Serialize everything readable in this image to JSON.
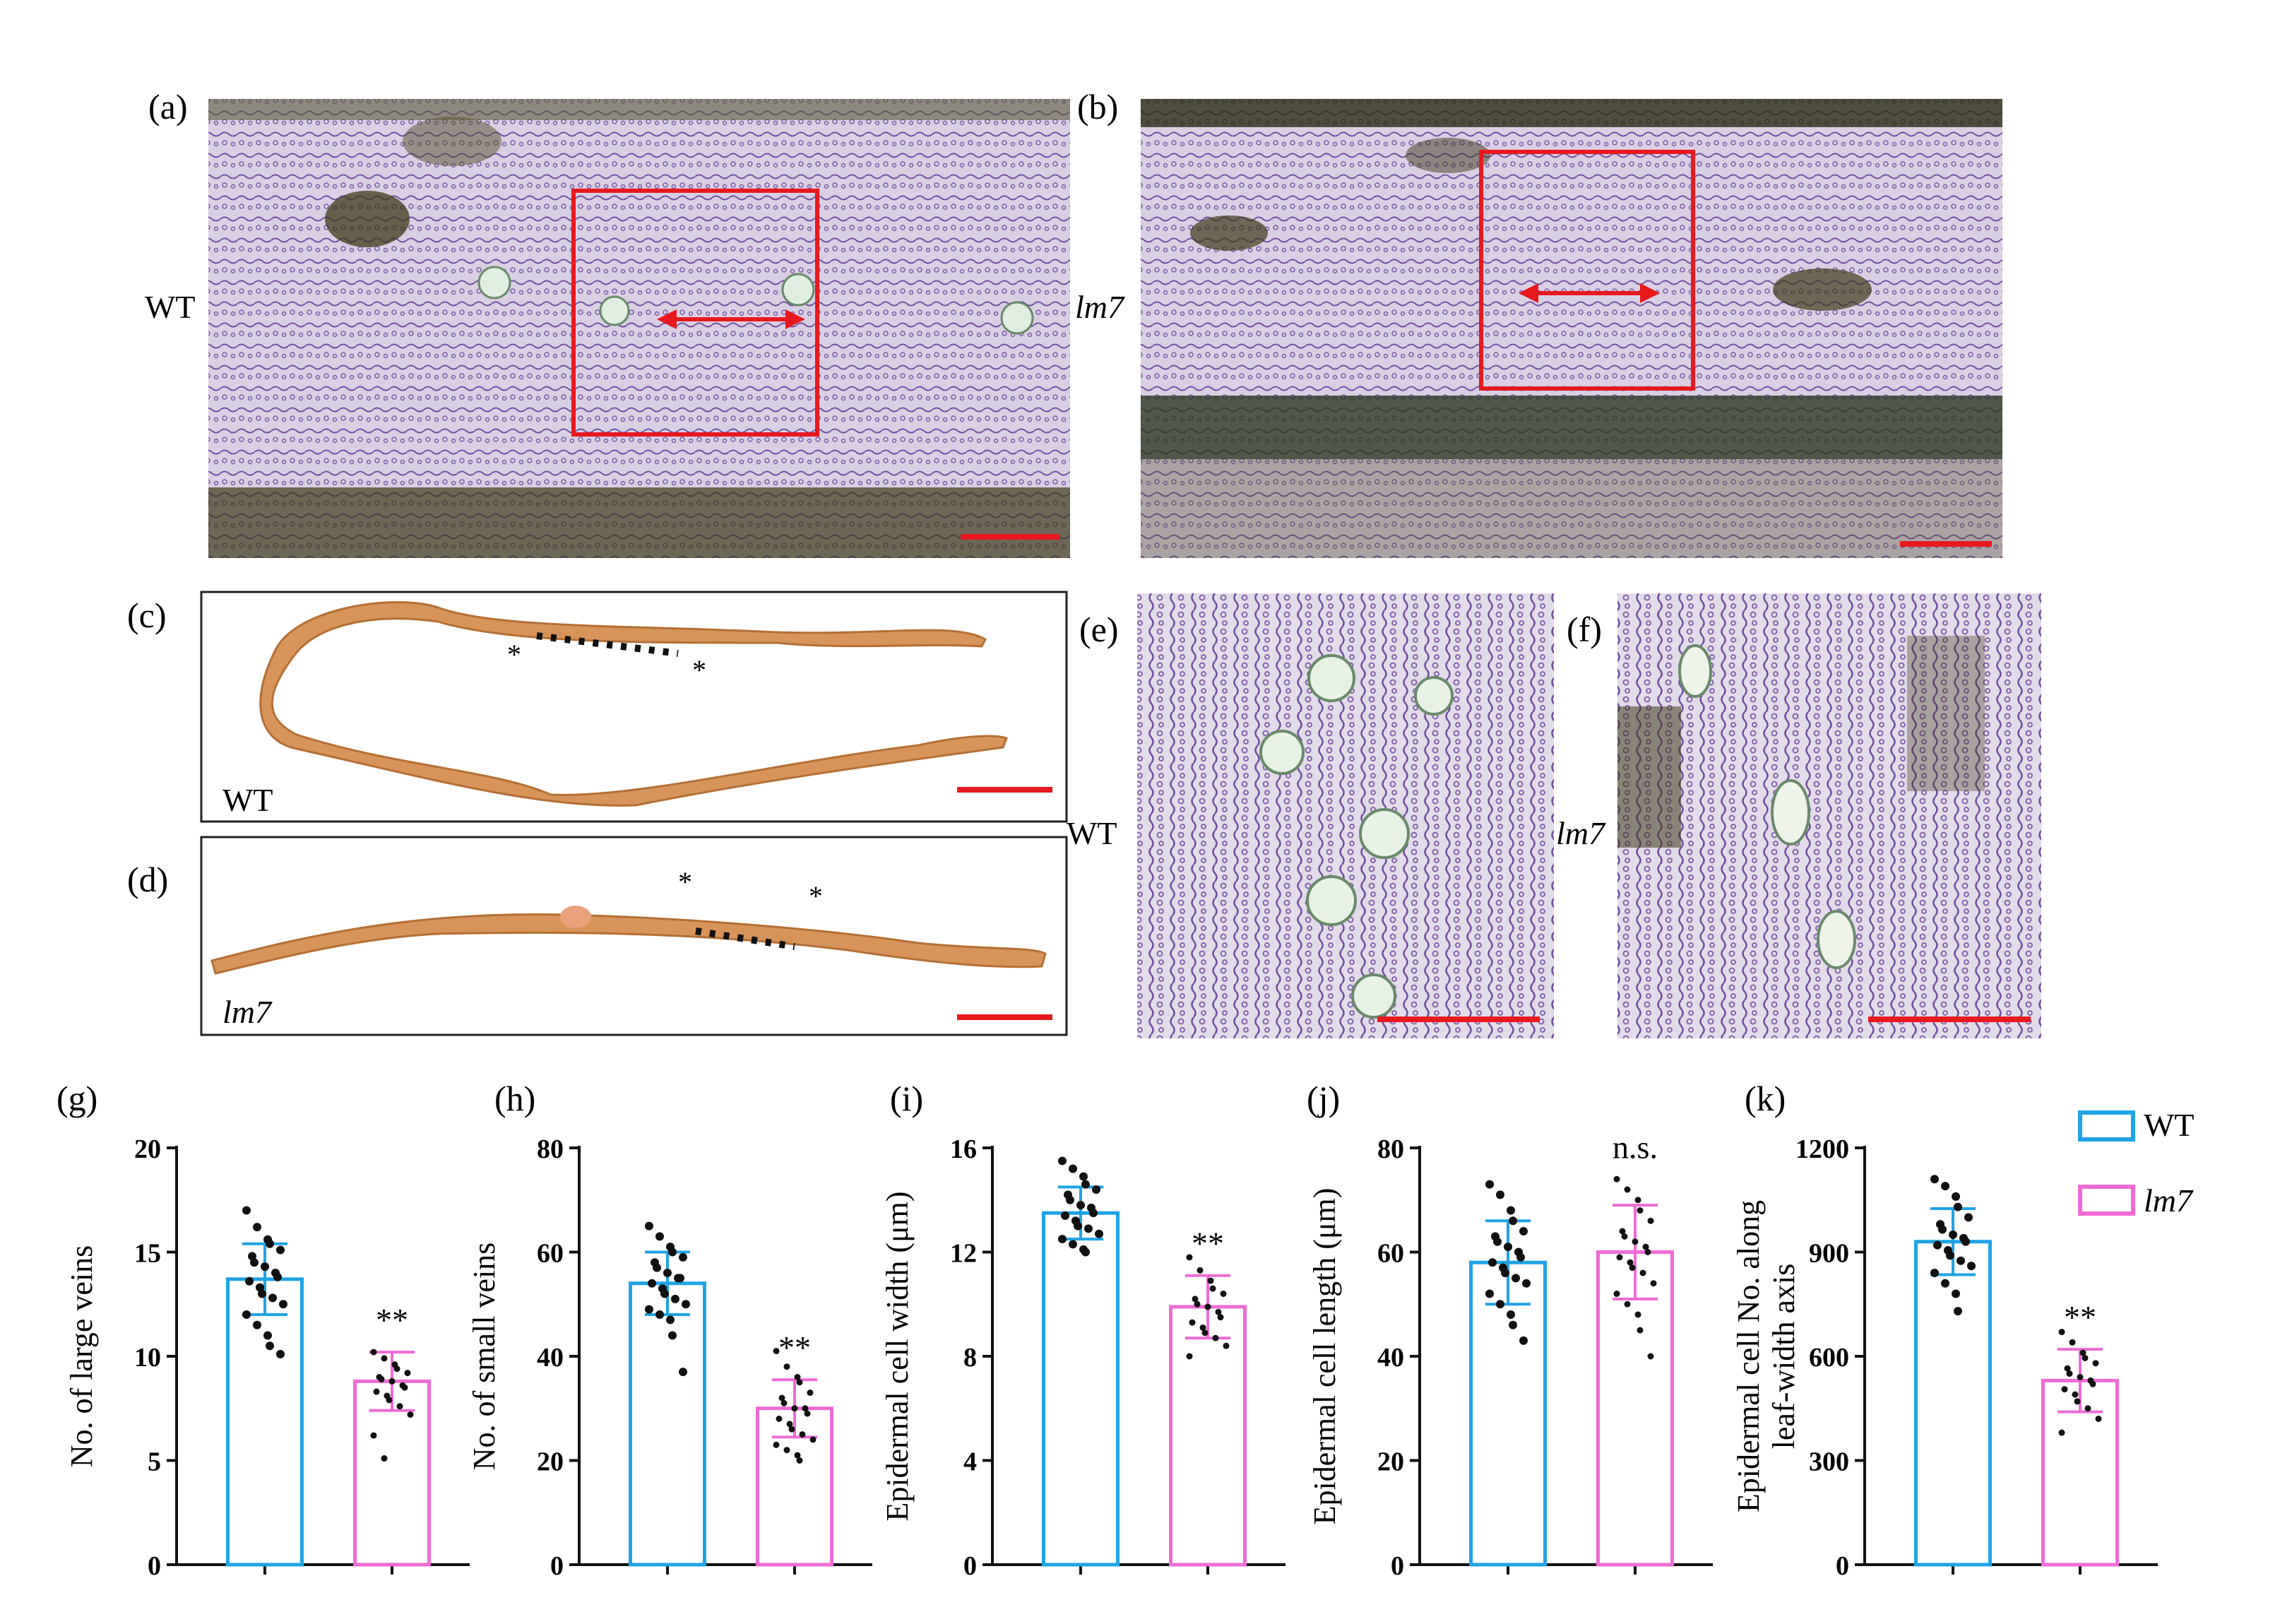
{
  "figure": {
    "panels": {
      "a": {
        "label": "(a)",
        "genotype": "WT"
      },
      "b": {
        "label": "(b)",
        "genotype": "lm7"
      },
      "c": {
        "label": "(c)",
        "genotype": "WT"
      },
      "d": {
        "label": "(d)",
        "genotype": "lm7"
      },
      "e": {
        "label": "(e)",
        "genotype": "WT"
      },
      "f": {
        "label": "(f)",
        "genotype": "lm7"
      }
    },
    "asterisk": "*"
  },
  "legend": {
    "position": "top-right",
    "items": [
      {
        "name": "WT",
        "color": "#1fa3e6"
      },
      {
        "name": "lm7",
        "color": "#f06ad6"
      }
    ]
  },
  "colors": {
    "wt": "#1fa3e6",
    "lm7": "#f06ad6",
    "scale_bar": "#e8191c",
    "section": "#d7945a",
    "micro_bg": "#d9cfe4",
    "micro_vein": "#b3a6c2",
    "micro_dark": "#3e3a1a"
  },
  "chart_data": [
    {
      "panel": "(g)",
      "type": "bar",
      "ylabel": "No. of  large veins",
      "ylim": [
        0,
        20
      ],
      "yticks": [
        "0",
        "5",
        "10",
        "15",
        "20"
      ],
      "categories": [
        "WT",
        "lm7"
      ],
      "values": [
        13.7,
        8.8
      ],
      "errors": [
        1.7,
        1.4
      ],
      "significance": "**",
      "points": [
        [
          17.0,
          16.2,
          15.6,
          15.4,
          15.1,
          14.8,
          14.5,
          14.3,
          14.0,
          13.8,
          13.6,
          13.3,
          13.0,
          12.8,
          12.5,
          12.0,
          11.5,
          11.0,
          10.5,
          10.1
        ],
        [
          10.2,
          9.9,
          9.6,
          9.4,
          9.2,
          9.0,
          8.9,
          8.8,
          8.6,
          8.5,
          8.3,
          8.1,
          7.9,
          7.6,
          7.2,
          6.2,
          5.1
        ]
      ]
    },
    {
      "panel": "(h)",
      "type": "bar",
      "ylabel": "No. of  small veins",
      "ylim": [
        0,
        80
      ],
      "yticks": [
        "0",
        "20",
        "40",
        "60",
        "80"
      ],
      "categories": [
        "WT",
        "lm7"
      ],
      "values": [
        54,
        30
      ],
      "errors": [
        6,
        5.5
      ],
      "significance": "**",
      "points": [
        [
          65,
          63,
          61,
          60,
          59,
          58,
          57,
          56,
          55,
          55,
          54,
          53,
          52,
          51,
          50,
          49,
          48,
          47,
          44,
          37
        ],
        [
          41,
          38,
          36,
          35,
          33,
          32,
          31,
          30,
          30,
          29,
          28,
          27,
          26,
          25,
          24,
          23,
          22,
          21,
          20
        ]
      ]
    },
    {
      "panel": "(i)",
      "type": "bar",
      "ylabel": "Epidermal  cell width (μm)",
      "ylim": [
        0,
        16
      ],
      "yticks": [
        "0",
        "4",
        "8",
        "12",
        "16"
      ],
      "categories": [
        "WT",
        "lm7"
      ],
      "values": [
        13.5,
        9.9
      ],
      "errors": [
        1.0,
        1.2
      ],
      "significance": "**",
      "points": [
        [
          15.5,
          15.2,
          14.9,
          14.6,
          14.4,
          14.2,
          14.0,
          13.8,
          13.7,
          13.5,
          13.4,
          13.2,
          13.0,
          12.9,
          12.7,
          12.5,
          12.3,
          12.1,
          12.0
        ],
        [
          11.8,
          11.3,
          10.9,
          10.6,
          10.4,
          10.2,
          10.0,
          9.9,
          9.7,
          9.5,
          9.3,
          9.1,
          8.9,
          8.7,
          8.4,
          8.0
        ]
      ]
    },
    {
      "panel": "(j)",
      "type": "bar",
      "ylabel": "Epidermal  cell length (μm)",
      "ylim": [
        0,
        80
      ],
      "yticks": [
        "0",
        "20",
        "40",
        "60",
        "80"
      ],
      "categories": [
        "WT",
        "lm7"
      ],
      "values": [
        58,
        60
      ],
      "errors": [
        8,
        9
      ],
      "significance": "n.s.",
      "points": [
        [
          73,
          71,
          68,
          66,
          64,
          63,
          62,
          61,
          60,
          59,
          58,
          57,
          56,
          55,
          54,
          52,
          50,
          48,
          46,
          43
        ],
        [
          74,
          72,
          70,
          68,
          66,
          64,
          63,
          62,
          61,
          60,
          59,
          58,
          57,
          56,
          54,
          52,
          50,
          48,
          45,
          40
        ]
      ]
    },
    {
      "panel": "(k)",
      "type": "bar",
      "ylabel": "Epidermal  cell No. along leaf-width axis",
      "ylim": [
        0,
        1200
      ],
      "yticks": [
        "0",
        "300",
        "600",
        "900",
        "1200"
      ],
      "categories": [
        "WT",
        "lm7"
      ],
      "values": [
        930,
        530
      ],
      "errors": [
        95,
        90
      ],
      "significance": "**",
      "points": [
        [
          1110,
          1090,
          1060,
          1030,
          1000,
          980,
          965,
          950,
          940,
          930,
          920,
          905,
          890,
          875,
          860,
          840,
          810,
          780,
          730
        ],
        [
          670,
          640,
          610,
          595,
          580,
          565,
          550,
          540,
          530,
          520,
          505,
          490,
          470,
          450,
          420,
          380
        ]
      ]
    }
  ]
}
